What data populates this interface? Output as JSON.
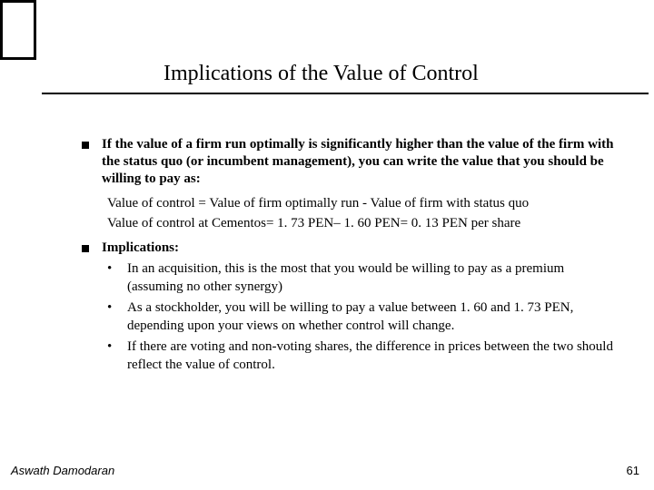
{
  "title": "Implications of the Value of Control",
  "bullets": [
    {
      "text": "If the value of a firm run optimally is significantly higher than the value of the firm with the status quo (or incumbent management), you can write the value that you should be willing to pay as:",
      "sublines": [
        "Value of control = Value of firm optimally run - Value of firm with status quo",
        "Value of control at Cementos= 1. 73 PEN– 1. 60 PEN= 0. 13 PEN per share"
      ]
    },
    {
      "text": "Implications:",
      "subbullets": [
        "In an acquisition, this is the most that you would be willing to pay as a premium (assuming no other synergy)",
        "As a stockholder, you will be willing to pay a value between 1. 60 and 1. 73 PEN, depending upon your views on whether control will change.",
        "If there are voting and non-voting shares, the difference in prices between the two should reflect the value of control."
      ]
    }
  ],
  "footer": {
    "author": "Aswath Damodaran",
    "page": "61"
  },
  "colors": {
    "text": "#000000",
    "bg": "#ffffff"
  }
}
